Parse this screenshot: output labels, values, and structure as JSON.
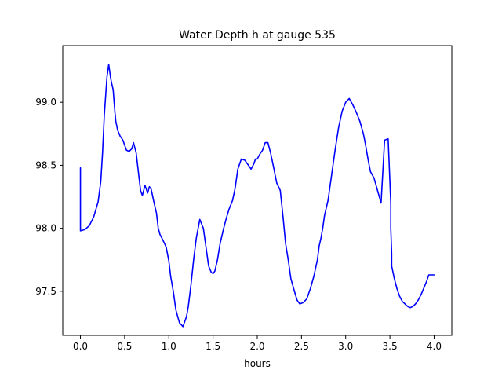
{
  "chart_data": {
    "type": "line",
    "title": "Water Depth h at gauge 535",
    "xlabel": "hours",
    "ylabel": "",
    "xlim": [
      -0.2,
      4.2
    ],
    "ylim": [
      97.15,
      99.45
    ],
    "xticks": [
      0.0,
      0.5,
      1.0,
      1.5,
      2.0,
      2.5,
      3.0,
      3.5,
      4.0
    ],
    "xtick_labels": [
      "0.0",
      "0.5",
      "1.0",
      "1.5",
      "2.0",
      "2.5",
      "3.0",
      "3.5",
      "4.0"
    ],
    "yticks": [
      97.5,
      98.0,
      98.5,
      99.0
    ],
    "ytick_labels": [
      "97.5",
      "98.0",
      "98.5",
      "99.0"
    ],
    "grid": false,
    "series": [
      {
        "color": "#0000ff",
        "x": [
          0.0,
          0.0,
          0.0,
          0.05,
          0.1,
          0.15,
          0.2,
          0.23,
          0.25,
          0.27,
          0.3,
          0.32,
          0.34,
          0.35,
          0.37,
          0.39,
          0.4,
          0.42,
          0.45,
          0.48,
          0.52,
          0.55,
          0.58,
          0.6,
          0.63,
          0.65,
          0.68,
          0.7,
          0.73,
          0.76,
          0.78,
          0.8,
          0.83,
          0.86,
          0.88,
          0.9,
          0.93,
          0.97,
          1.0,
          1.02,
          1.05,
          1.08,
          1.12,
          1.16,
          1.2,
          1.22,
          1.25,
          1.28,
          1.31,
          1.35,
          1.39,
          1.42,
          1.45,
          1.48,
          1.5,
          1.52,
          1.55,
          1.58,
          1.62,
          1.65,
          1.68,
          1.72,
          1.75,
          1.78,
          1.82,
          1.86,
          1.9,
          1.93,
          1.96,
          1.98,
          2.0,
          2.03,
          2.06,
          2.09,
          2.12,
          2.15,
          2.18,
          2.22,
          2.26,
          2.29,
          2.32,
          2.35,
          2.38,
          2.42,
          2.45,
          2.48,
          2.52,
          2.56,
          2.6,
          2.64,
          2.68,
          2.7,
          2.72,
          2.74,
          2.76,
          2.8,
          2.84,
          2.88,
          2.92,
          2.96,
          3.0,
          3.04,
          3.08,
          3.12,
          3.16,
          3.2,
          3.22,
          3.24,
          3.26,
          3.28,
          3.32,
          3.36,
          3.4,
          3.44,
          3.48,
          3.51,
          3.51,
          3.52,
          3.52,
          3.55,
          3.58,
          3.61,
          3.64,
          3.67,
          3.7,
          3.73,
          3.76,
          3.79,
          3.82,
          3.85,
          3.88,
          3.91,
          3.94,
          3.97,
          4.0
        ],
        "y": [
          98.48,
          98.02,
          97.98,
          97.99,
          98.02,
          98.09,
          98.21,
          98.37,
          98.6,
          98.9,
          99.2,
          99.3,
          99.2,
          99.16,
          99.1,
          98.92,
          98.85,
          98.78,
          98.73,
          98.7,
          98.62,
          98.61,
          98.63,
          98.68,
          98.6,
          98.48,
          98.3,
          98.26,
          98.34,
          98.28,
          98.33,
          98.31,
          98.21,
          98.12,
          98.0,
          97.95,
          97.91,
          97.85,
          97.74,
          97.62,
          97.5,
          97.35,
          97.25,
          97.22,
          97.3,
          97.38,
          97.55,
          97.75,
          97.92,
          98.07,
          98.0,
          97.85,
          97.7,
          97.65,
          97.64,
          97.66,
          97.75,
          97.88,
          98.0,
          98.08,
          98.15,
          98.22,
          98.32,
          98.47,
          98.55,
          98.54,
          98.5,
          98.47,
          98.51,
          98.55,
          98.55,
          98.59,
          98.62,
          98.68,
          98.68,
          98.6,
          98.5,
          98.36,
          98.3,
          98.1,
          97.88,
          97.75,
          97.6,
          97.5,
          97.43,
          97.4,
          97.41,
          97.44,
          97.52,
          97.62,
          97.75,
          97.86,
          97.92,
          98.0,
          98.1,
          98.22,
          98.42,
          98.62,
          98.8,
          98.93,
          99.0,
          99.03,
          98.98,
          98.92,
          98.85,
          98.75,
          98.68,
          98.6,
          98.52,
          98.45,
          98.4,
          98.3,
          98.2,
          98.7,
          98.71,
          98.2,
          98.0,
          97.8,
          97.7,
          97.6,
          97.52,
          97.46,
          97.42,
          97.4,
          97.38,
          97.37,
          97.38,
          97.4,
          97.43,
          97.47,
          97.52,
          97.57,
          97.63,
          97.63,
          97.63
        ]
      }
    ]
  }
}
